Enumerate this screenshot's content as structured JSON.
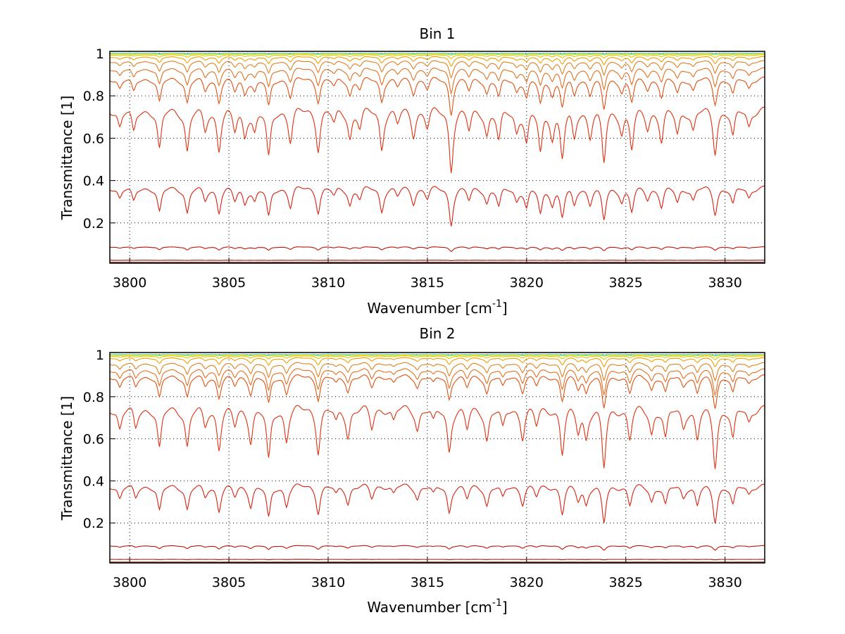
{
  "chart_data": [
    {
      "type": "line",
      "title": "Bin 1",
      "xlabel": "Wavenumber [cm",
      "xlabel_sup": "-1",
      "xlabel_end": "]",
      "ylabel": "Transmittance [1]",
      "xlim": [
        3799,
        3832
      ],
      "ylim": [
        0.01,
        1.01
      ],
      "xticks": [
        3800,
        3805,
        3810,
        3815,
        3820,
        3825,
        3830
      ],
      "yticks": [
        0.2,
        0.4,
        0.6,
        0.8,
        1
      ],
      "grid": "dotted",
      "series": [
        {
          "base": 1.0,
          "depth": 0.003,
          "color": "#00c8c8"
        },
        {
          "base": 0.998,
          "depth": 0.008,
          "color": "#e8e800"
        },
        {
          "base": 0.994,
          "depth": 0.02,
          "color": "#f0c000"
        },
        {
          "base": 0.985,
          "depth": 0.05,
          "color": "#f0a000"
        },
        {
          "base": 0.965,
          "depth": 0.09,
          "color": "#e08020"
        },
        {
          "base": 0.93,
          "depth": 0.14,
          "color": "#e07020"
        },
        {
          "base": 0.885,
          "depth": 0.22,
          "color": "#e05010"
        },
        {
          "base": 0.74,
          "depth": 0.45,
          "color": "#e03010"
        },
        {
          "base": 0.37,
          "depth": 0.55,
          "color": "#d82010"
        },
        {
          "base": 0.085,
          "depth": 0.28,
          "color": "#c01008"
        },
        {
          "base": 0.022,
          "depth": 0.1,
          "color": "#901008"
        },
        {
          "base": 0.012,
          "depth": 0.05,
          "color": "#701008"
        }
      ],
      "dips": [
        [
          3799.5,
          0.25
        ],
        [
          3800.2,
          0.35
        ],
        [
          3801.5,
          0.6
        ],
        [
          3802.9,
          0.6
        ],
        [
          3803.8,
          0.3
        ],
        [
          3804.5,
          0.55
        ],
        [
          3805.3,
          0.3
        ],
        [
          3805.8,
          0.35
        ],
        [
          3806.3,
          0.3
        ],
        [
          3807.0,
          0.7
        ],
        [
          3808.1,
          0.45
        ],
        [
          3809.5,
          0.55
        ],
        [
          3810.3,
          0.2
        ],
        [
          3811.1,
          0.4
        ],
        [
          3811.6,
          0.25
        ],
        [
          3812.7,
          0.55
        ],
        [
          3813.5,
          0.2
        ],
        [
          3814.3,
          0.35
        ],
        [
          3815.0,
          0.25
        ],
        [
          3816.2,
          0.85
        ],
        [
          3817.1,
          0.3
        ],
        [
          3818.0,
          0.35
        ],
        [
          3818.6,
          0.45
        ],
        [
          3819.5,
          0.3
        ],
        [
          3820.0,
          0.45
        ],
        [
          3820.7,
          0.6
        ],
        [
          3821.3,
          0.35
        ],
        [
          3821.8,
          0.65
        ],
        [
          3822.4,
          0.4
        ],
        [
          3823.2,
          0.35
        ],
        [
          3823.9,
          0.75
        ],
        [
          3824.8,
          0.3
        ],
        [
          3825.3,
          0.55
        ],
        [
          3826.1,
          0.25
        ],
        [
          3826.8,
          0.45
        ],
        [
          3827.6,
          0.35
        ],
        [
          3828.4,
          0.3
        ],
        [
          3829.5,
          0.6
        ],
        [
          3830.4,
          0.4
        ],
        [
          3831.2,
          0.25
        ]
      ]
    },
    {
      "type": "line",
      "title": "Bin 2",
      "xlabel": "Wavenumber [cm",
      "xlabel_sup": "-1",
      "xlabel_end": "]",
      "ylabel": "Transmittance [1]",
      "xlim": [
        3799,
        3832
      ],
      "ylim": [
        0.01,
        1.01
      ],
      "xticks": [
        3800,
        3805,
        3810,
        3815,
        3820,
        3825,
        3830
      ],
      "yticks": [
        0.2,
        0.4,
        0.6,
        0.8,
        1
      ],
      "grid": "dotted",
      "series": [
        {
          "base": 1.0,
          "depth": 0.003,
          "color": "#00c8c8"
        },
        {
          "base": 0.998,
          "depth": 0.008,
          "color": "#e8e800"
        },
        {
          "base": 0.994,
          "depth": 0.02,
          "color": "#f0c000"
        },
        {
          "base": 0.985,
          "depth": 0.05,
          "color": "#f0a000"
        },
        {
          "base": 0.96,
          "depth": 0.1,
          "color": "#e08020"
        },
        {
          "base": 0.93,
          "depth": 0.15,
          "color": "#e07020"
        },
        {
          "base": 0.9,
          "depth": 0.2,
          "color": "#e05010"
        },
        {
          "base": 0.75,
          "depth": 0.45,
          "color": "#e03010"
        },
        {
          "base": 0.38,
          "depth": 0.55,
          "color": "#d82010"
        },
        {
          "base": 0.09,
          "depth": 0.28,
          "color": "#c01008"
        },
        {
          "base": 0.025,
          "depth": 0.1,
          "color": "#901008"
        },
        {
          "base": 0.012,
          "depth": 0.05,
          "color": "#701008"
        }
      ],
      "dips": [
        [
          3799.5,
          0.3
        ],
        [
          3800.3,
          0.3
        ],
        [
          3801.5,
          0.6
        ],
        [
          3802.9,
          0.55
        ],
        [
          3803.8,
          0.25
        ],
        [
          3804.5,
          0.55
        ],
        [
          3805.3,
          0.25
        ],
        [
          3806.1,
          0.45
        ],
        [
          3807.0,
          0.75
        ],
        [
          3807.9,
          0.45
        ],
        [
          3809.5,
          0.6
        ],
        [
          3810.4,
          0.2
        ],
        [
          3811.0,
          0.4
        ],
        [
          3812.2,
          0.3
        ],
        [
          3813.3,
          0.2
        ],
        [
          3814.5,
          0.3
        ],
        [
          3815.3,
          0.2
        ],
        [
          3816.1,
          0.6
        ],
        [
          3817.0,
          0.3
        ],
        [
          3818.0,
          0.45
        ],
        [
          3818.8,
          0.3
        ],
        [
          3819.8,
          0.4
        ],
        [
          3820.5,
          0.25
        ],
        [
          3821.8,
          0.65
        ],
        [
          3822.6,
          0.3
        ],
        [
          3823.0,
          0.4
        ],
        [
          3823.9,
          0.85
        ],
        [
          3825.2,
          0.45
        ],
        [
          3826.3,
          0.35
        ],
        [
          3827.0,
          0.45
        ],
        [
          3827.9,
          0.25
        ],
        [
          3828.6,
          0.45
        ],
        [
          3829.5,
          0.8
        ],
        [
          3830.4,
          0.45
        ],
        [
          3831.2,
          0.2
        ]
      ]
    }
  ]
}
